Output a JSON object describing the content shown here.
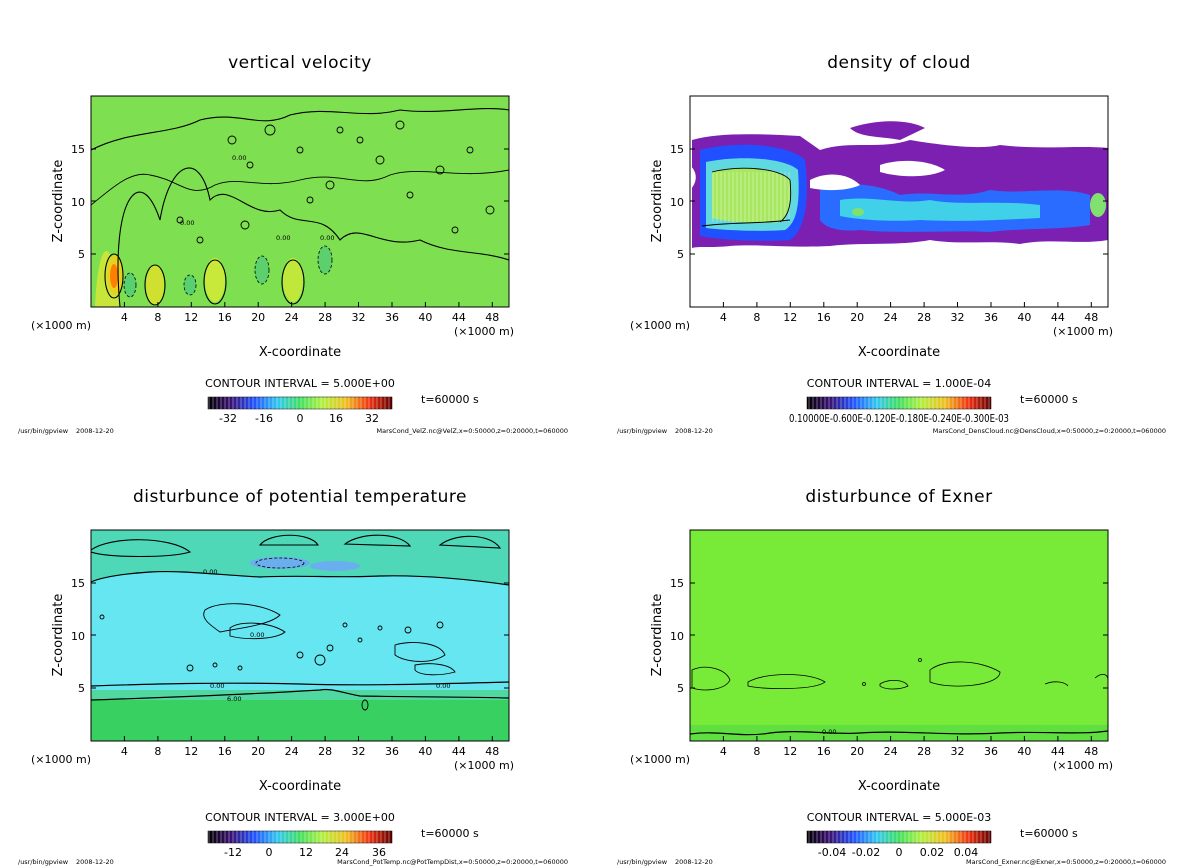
{
  "footer_left": {
    "path": "/usr/bin/gpview",
    "date": "2008-12-20"
  },
  "chart_data": [
    {
      "type": "heatmap",
      "title": "vertical velocity",
      "xlabel": "X-coordinate",
      "ylabel": "Z-coordinate",
      "x_unit_left": "(×1000 m)",
      "x_unit_right": "(×1000 m)",
      "xticks": [
        "4",
        "8",
        "12",
        "16",
        "20",
        "24",
        "28",
        "32",
        "36",
        "40",
        "44",
        "48"
      ],
      "yticks": [
        "5",
        "10",
        "15"
      ],
      "xlim": [
        0,
        50
      ],
      "ylim": [
        0,
        20
      ],
      "contour_interval": "CONTOUR INTERVAL = 5.000E+00",
      "time_label": "t=60000 s",
      "colorbar_ticks": [
        "-32",
        "-16",
        "0",
        "16",
        "32"
      ],
      "contour_labels": [
        "0.00",
        "0.00",
        "0.00",
        "0.00"
      ],
      "footer_right": "MarsCond_VelZ.nc@VelZ,x=0:50000,z=0:20000,t=060000",
      "base_color": "#7ee050"
    },
    {
      "type": "heatmap",
      "title": "density of cloud",
      "xlabel": "X-coordinate",
      "ylabel": "Z-coordinate",
      "x_unit_left": "(×1000 m)",
      "x_unit_right": "(×1000 m)",
      "xticks": [
        "4",
        "8",
        "12",
        "16",
        "20",
        "24",
        "28",
        "32",
        "36",
        "40",
        "44",
        "48"
      ],
      "yticks": [
        "5",
        "10",
        "15"
      ],
      "xlim": [
        0,
        50
      ],
      "ylim": [
        0,
        20
      ],
      "contour_interval": "CONTOUR INTERVAL = 1.000E-04",
      "time_label": "t=60000 s",
      "colorbar_ticks": [
        "0.10000E-0.600E-0.120E-0.180E-0.240E-0.300E-03"
      ],
      "contour_labels": [],
      "footer_right": "MarsCond_DensCloud.nc@DensCloud,x=0:50000,z=0:20000,t=060000",
      "base_color": "#ffffff"
    },
    {
      "type": "heatmap",
      "title": "disturbunce of potential temperature",
      "xlabel": "X-coordinate",
      "ylabel": "Z-coordinate",
      "x_unit_left": "(×1000 m)",
      "x_unit_right": "(×1000 m)",
      "xticks": [
        "4",
        "8",
        "12",
        "16",
        "20",
        "24",
        "28",
        "32",
        "36",
        "40",
        "44",
        "48"
      ],
      "yticks": [
        "5",
        "10",
        "15"
      ],
      "xlim": [
        0,
        50
      ],
      "ylim": [
        0,
        20
      ],
      "contour_interval": "CONTOUR INTERVAL = 3.000E+00",
      "time_label": "t=60000 s",
      "colorbar_ticks": [
        "-12",
        "0",
        "12",
        "24",
        "36"
      ],
      "contour_labels": [
        "0.00",
        "0.00",
        "0.00",
        "0.00",
        "6.00"
      ],
      "footer_right": "MarsCond_PotTemp.nc@PotTempDist,x=0:50000,z=0:20000,t=060000",
      "base_color": "#66e6f0"
    },
    {
      "type": "heatmap",
      "title": "disturbunce of Exner",
      "xlabel": "X-coordinate",
      "ylabel": "Z-coordinate",
      "x_unit_left": "(×1000 m)",
      "x_unit_right": "(×1000 m)",
      "xticks": [
        "4",
        "8",
        "12",
        "16",
        "20",
        "24",
        "28",
        "32",
        "36",
        "40",
        "44",
        "48"
      ],
      "yticks": [
        "5",
        "10",
        "15"
      ],
      "xlim": [
        0,
        50
      ],
      "ylim": [
        0,
        20
      ],
      "contour_interval": "CONTOUR INTERVAL = 5.000E-03",
      "time_label": "t=60000 s",
      "colorbar_ticks": [
        "-0.04",
        "-0.02",
        "0",
        "0.02",
        "0.04"
      ],
      "contour_labels": [
        "0.00"
      ],
      "footer_right": "MarsCond_Exner.nc@Exner,x=0:50000,z=0:20000,t=060000",
      "base_color": "#78ea38"
    }
  ]
}
